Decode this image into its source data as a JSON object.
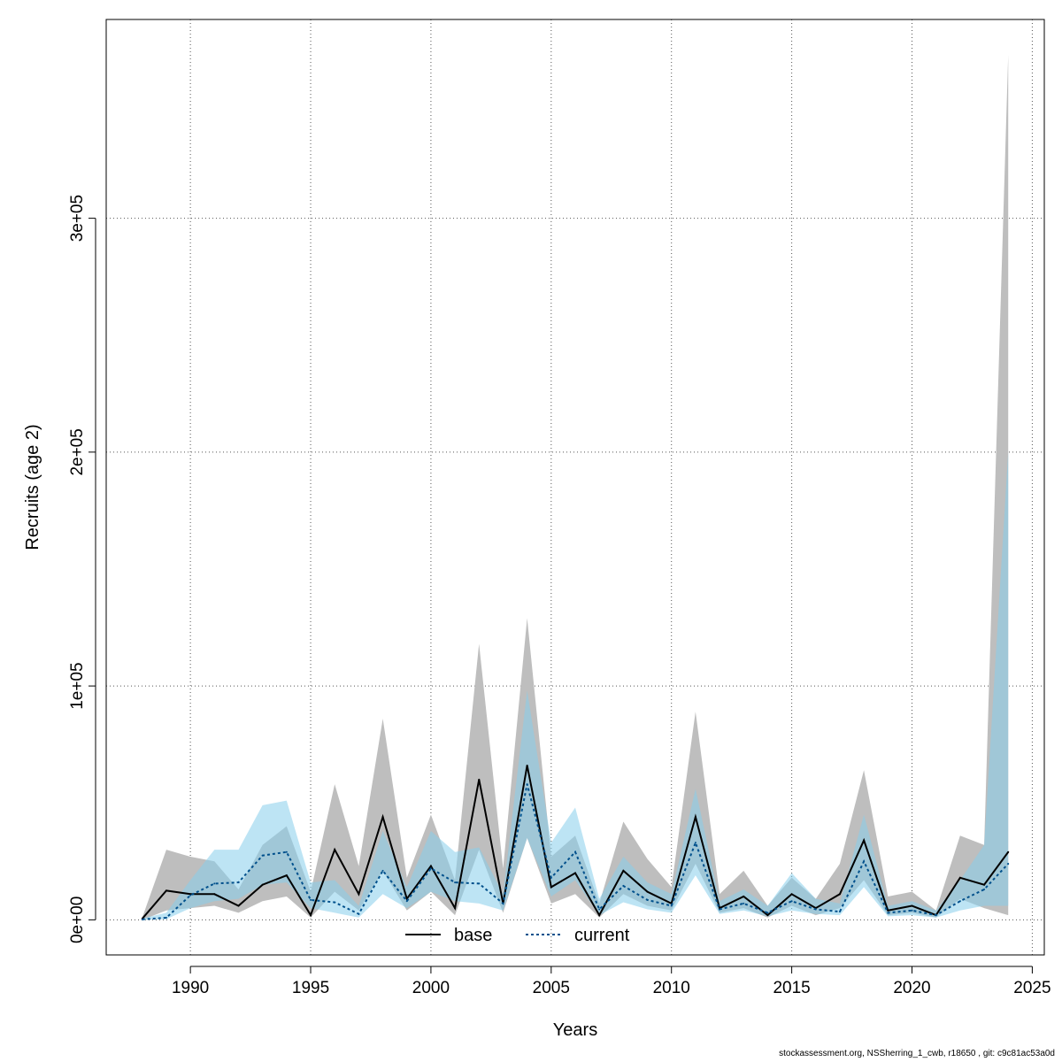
{
  "chart_data": {
    "type": "line",
    "title": "",
    "xlabel": "Years",
    "ylabel": "Recruits (age 2)",
    "xlim": [
      1986.5,
      2025.5
    ],
    "ylim": [
      -15000,
      385000
    ],
    "grid": true,
    "legend_position": "bottom-center",
    "x_ticks": [
      1990,
      1995,
      2000,
      2005,
      2010,
      2015,
      2020,
      2025
    ],
    "x_tick_labels": [
      "1990",
      "1995",
      "2000",
      "2005",
      "2010",
      "2015",
      "2020",
      "2025"
    ],
    "y_ticks": [
      0,
      100000,
      200000,
      300000
    ],
    "y_tick_labels": [
      "0e+00",
      "1e+05",
      "2e+05",
      "3e+05"
    ],
    "x": [
      1988,
      1989,
      1990,
      1991,
      1992,
      1993,
      1994,
      1995,
      1996,
      1997,
      1998,
      1999,
      2000,
      2001,
      2002,
      2003,
      2004,
      2005,
      2006,
      2007,
      2008,
      2009,
      2010,
      2011,
      2012,
      2013,
      2014,
      2015,
      2016,
      2017,
      2018,
      2019,
      2020,
      2021,
      2022,
      2023,
      2024
    ],
    "series": [
      {
        "name": "base",
        "color": "#000000",
        "band_color": "#bebebe",
        "line_style": "solid",
        "values": [
          500,
          12500,
          11000,
          11000,
          6000,
          15000,
          19000,
          2000,
          30000,
          11000,
          44000,
          9000,
          23000,
          5000,
          60000,
          7000,
          66000,
          14000,
          20000,
          2000,
          21000,
          12000,
          7000,
          44000,
          5000,
          10000,
          2000,
          11000,
          5000,
          11000,
          34000,
          4000,
          6000,
          2000,
          18000,
          15000,
          29000
        ],
        "lower": [
          0,
          4000,
          5000,
          6000,
          3000,
          8000,
          10000,
          1000,
          12000,
          4000,
          21000,
          4000,
          12000,
          2000,
          30000,
          3000,
          35000,
          7000,
          11000,
          1000,
          11000,
          6000,
          4000,
          24000,
          3000,
          5000,
          1000,
          6000,
          2000,
          5000,
          17000,
          2000,
          3000,
          1000,
          9000,
          5000,
          2000
        ],
        "upper": [
          1000,
          30000,
          27000,
          25000,
          13000,
          32000,
          40000,
          12000,
          58000,
          23000,
          86000,
          18000,
          45000,
          17000,
          118000,
          22000,
          129000,
          27000,
          36000,
          7000,
          42000,
          26000,
          14000,
          89000,
          11000,
          21000,
          6000,
          18000,
          9000,
          24000,
          64000,
          10000,
          12000,
          4000,
          36000,
          32000,
          370000
        ]
      },
      {
        "name": "current",
        "color": "#00508c",
        "band_color": "#87ceeb",
        "line_style": "dashed",
        "values": [
          200,
          900,
          10500,
          15500,
          16000,
          27500,
          29000,
          8500,
          7500,
          2500,
          21000,
          8000,
          22000,
          16000,
          15500,
          7000,
          58000,
          18000,
          29000,
          4500,
          14500,
          8500,
          6000,
          33000,
          4500,
          7000,
          3000,
          8000,
          4500,
          3500,
          25000,
          3000,
          4000,
          2000,
          8000,
          13000,
          24000
        ],
        "lower": [
          0,
          300,
          5000,
          8000,
          9000,
          15000,
          16000,
          5000,
          3000,
          1000,
          11000,
          5000,
          12000,
          8000,
          7000,
          4000,
          35000,
          10000,
          17000,
          2000,
          7500,
          4500,
          3000,
          19000,
          2500,
          4000,
          1500,
          4000,
          2500,
          2000,
          14000,
          1500,
          2000,
          1000,
          4000,
          6000,
          6000
        ],
        "upper": [
          600,
          3000,
          17000,
          30000,
          30000,
          49000,
          51000,
          16000,
          17000,
          6000,
          38000,
          14000,
          38000,
          29000,
          31000,
          11000,
          98000,
          33000,
          48000,
          9000,
          27000,
          16000,
          11000,
          56000,
          8000,
          13000,
          6000,
          20000,
          9000,
          7000,
          45000,
          6000,
          8000,
          4000,
          17000,
          32000,
          200000
        ]
      }
    ]
  },
  "footer": "stockassessment.org, NSSherring_1_cwb, r18650 , git: c9c81ac53a0d"
}
